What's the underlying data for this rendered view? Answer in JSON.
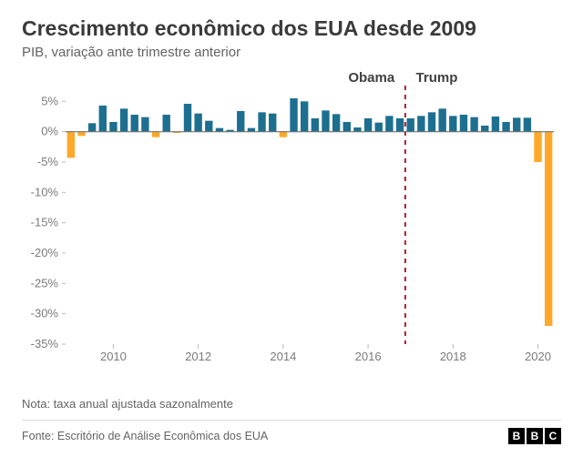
{
  "title": "Crescimento econômico dos EUA desde 2009",
  "subtitle": "PIB, variação ante trimestre anterior",
  "note": "Nota: taxa anual ajustada sazonalmente",
  "source": "Fonte: Escritório de Análise Econômica dos EUA",
  "logo_letters": [
    "B",
    "B",
    "C"
  ],
  "chart": {
    "type": "bar",
    "background_color": "#ffffff",
    "positive_color": "#1d6f90",
    "negative_color": "#ffa829",
    "tick_color": "#b9b9b9",
    "baseline_color": "#707070",
    "divider_color": "#b01c2e",
    "label_text_color": "#7a7a7a",
    "ann_text_color": "#404040",
    "y_axis": {
      "min": -35,
      "max": 7,
      "ticks": [
        5,
        0,
        -5,
        -10,
        -15,
        -20,
        -25,
        -30,
        -35
      ],
      "labels": [
        "5%",
        "0%",
        "-5%",
        "-10%",
        "-15%",
        "-20%",
        "-25%",
        "-30%",
        "-35%"
      ],
      "label_fontsize": 13
    },
    "x_axis": {
      "start_year": 2009,
      "start_quarter": 1,
      "ticks_years": [
        2010,
        2012,
        2014,
        2016,
        2018,
        2020
      ],
      "label_fontsize": 13
    },
    "bar_width_ratio": 0.72,
    "annotations": [
      {
        "label": "Obama",
        "align": "end",
        "at_quarter_index": 31,
        "fontsize": 15
      },
      {
        "label": "Trump",
        "align": "start",
        "at_quarter_index": 33,
        "fontsize": 15
      }
    ],
    "divider": {
      "at_quarter_index": 32,
      "dash": "5 5",
      "width": 2
    },
    "values": [
      -4.3,
      -0.7,
      1.4,
      4.3,
      1.6,
      3.8,
      2.8,
      2.4,
      -0.9,
      2.8,
      -0.2,
      4.6,
      3.0,
      1.8,
      0.6,
      0.3,
      3.4,
      0.6,
      3.2,
      3.0,
      -0.9,
      5.5,
      5.0,
      2.2,
      3.5,
      2.9,
      1.6,
      0.7,
      2.2,
      1.5,
      2.6,
      2.2,
      2.2,
      2.6,
      3.2,
      3.8,
      2.6,
      2.8,
      2.4,
      1.0,
      2.5,
      1.6,
      2.3,
      2.3,
      -5.0,
      -32.0
    ]
  }
}
